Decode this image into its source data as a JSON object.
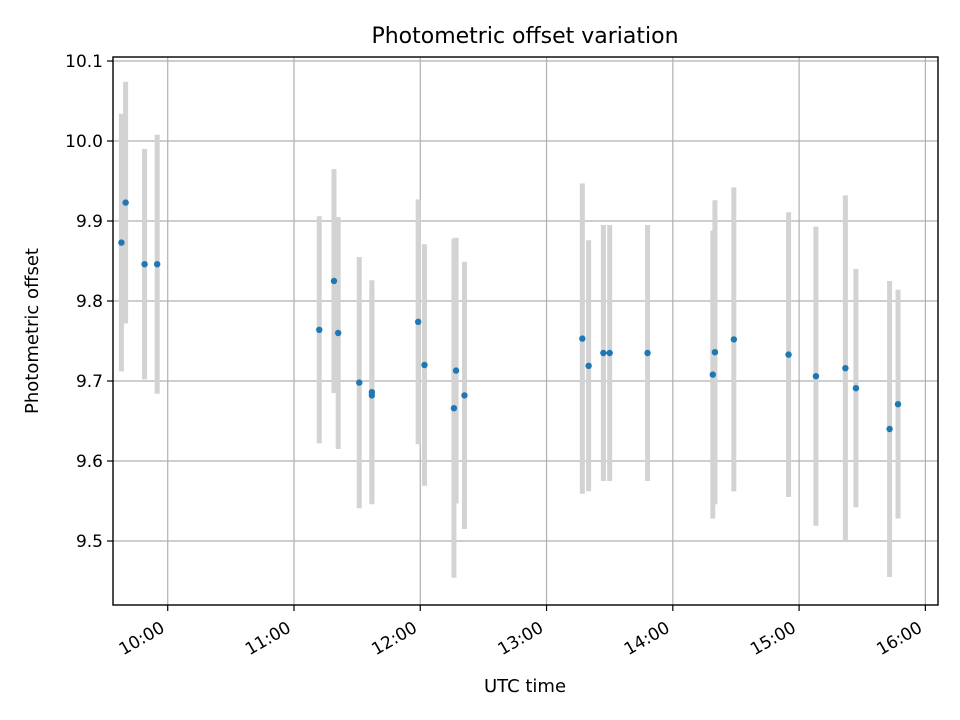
{
  "chart_data": {
    "type": "scatter",
    "title": "Photometric offset variation",
    "xlabel": "UTC time",
    "ylabel": "Photometric offset",
    "grid": true,
    "x_axis": {
      "kind": "time",
      "range": [
        "09:34",
        "16:06"
      ],
      "ticks": [
        "10:00",
        "11:00",
        "12:00",
        "13:00",
        "14:00",
        "15:00",
        "16:00"
      ]
    },
    "y_axis": {
      "range": [
        9.42,
        10.105
      ],
      "ticks": [
        9.5,
        9.6,
        9.7,
        9.8,
        9.9,
        10.0,
        10.1
      ],
      "tick_labels": [
        "9.5",
        "9.6",
        "9.7",
        "9.8",
        "9.9",
        "10.0",
        "10.1"
      ]
    },
    "series": [
      {
        "marker_color": "#1f77b4",
        "errorbar_color": "#d3d3d3",
        "points": [
          {
            "x": "09:38",
            "y": 9.873,
            "err": 0.161
          },
          {
            "x": "09:40",
            "y": 9.923,
            "err": 0.151
          },
          {
            "x": "09:49",
            "y": 9.846,
            "err": 0.144
          },
          {
            "x": "09:55",
            "y": 9.846,
            "err": 0.162
          },
          {
            "x": "11:12",
            "y": 9.764,
            "err": 0.142
          },
          {
            "x": "11:19",
            "y": 9.825,
            "err": 0.14
          },
          {
            "x": "11:21",
            "y": 9.76,
            "err": 0.145
          },
          {
            "x": "11:31",
            "y": 9.698,
            "err": 0.157
          },
          {
            "x": "11:37",
            "y": 9.682,
            "err": 0.134
          },
          {
            "x": "11:37",
            "y": 9.686,
            "err": 0.14
          },
          {
            "x": "11:59",
            "y": 9.774,
            "err": 0.153
          },
          {
            "x": "12:02",
            "y": 9.72,
            "err": 0.151
          },
          {
            "x": "12:16",
            "y": 9.666,
            "err": 0.212
          },
          {
            "x": "12:17",
            "y": 9.713,
            "err": 0.166
          },
          {
            "x": "12:21",
            "y": 9.682,
            "err": 0.167
          },
          {
            "x": "13:17",
            "y": 9.753,
            "err": 0.194
          },
          {
            "x": "13:20",
            "y": 9.719,
            "err": 0.157
          },
          {
            "x": "13:27",
            "y": 9.735,
            "err": 0.16
          },
          {
            "x": "13:30",
            "y": 9.735,
            "err": 0.16
          },
          {
            "x": "13:48",
            "y": 9.735,
            "err": 0.16
          },
          {
            "x": "14:19",
            "y": 9.708,
            "err": 0.18
          },
          {
            "x": "14:20",
            "y": 9.736,
            "err": 0.19
          },
          {
            "x": "14:29",
            "y": 9.752,
            "err": 0.19
          },
          {
            "x": "14:55",
            "y": 9.733,
            "err": 0.178
          },
          {
            "x": "15:08",
            "y": 9.706,
            "err": 0.187
          },
          {
            "x": "15:22",
            "y": 9.716,
            "err": 0.216
          },
          {
            "x": "15:27",
            "y": 9.691,
            "err": 0.149
          },
          {
            "x": "15:43",
            "y": 9.64,
            "err": 0.185
          },
          {
            "x": "15:47",
            "y": 9.671,
            "err": 0.143
          }
        ]
      }
    ]
  }
}
